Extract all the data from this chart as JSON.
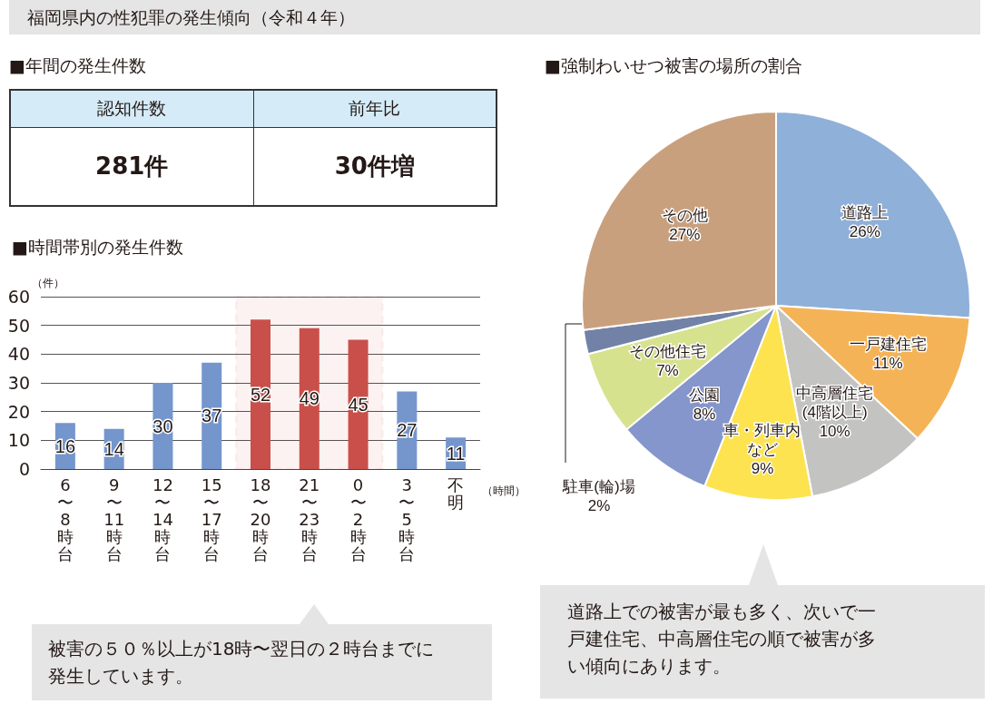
{
  "chart_data": [
    {
      "type": "other",
      "title": "福岡県内の性犯罪の発生傾向（令和４年）",
      "subtitle": "■年間の発生件数",
      "annotations": [
        "認知件数",
        "前年比",
        "281件",
        "30件増"
      ]
    },
    {
      "type": "bar",
      "title": "■時間帯別の発生件数",
      "ylabel": "（件）",
      "xlabel": "（時間）",
      "categories": [
        "6〜8時台",
        "9〜11時台",
        "12〜14時台",
        "15〜17時台",
        "18〜20時台",
        "21〜23時台",
        "0〜2時台",
        "3〜5時台",
        "不明"
      ],
      "values": [
        16,
        14,
        30,
        37,
        52,
        49,
        45,
        27,
        11
      ],
      "colors": [
        "#7496cc",
        "#7496cc",
        "#7496cc",
        "#7496cc",
        "#c9504a",
        "#c9504a",
        "#c9504a",
        "#7496cc",
        "#7496cc"
      ],
      "ylim": [
        0,
        60
      ],
      "yticks": [
        0,
        10,
        20,
        30,
        40,
        50,
        60
      ],
      "grid": "y",
      "data_labels": true,
      "bands": [
        {
          "axis": "x",
          "from": "18〜20時台",
          "to": "0〜2時台",
          "color": "#e02828"
        }
      ],
      "annotations": [
        "被害の５０％以上が18時〜翌日の２時台までに発生しています。"
      ]
    },
    {
      "type": "pie",
      "title": "■強制わいせつ被害の場所の割合",
      "categories": [
        "道路上",
        "一戸建住宅",
        "中高層住宅(4階以上)",
        "車・列車内など",
        "公園",
        "その他住宅",
        "駐車(輪)場",
        "その他"
      ],
      "values": [
        26,
        11,
        10,
        9,
        8,
        7,
        2,
        27
      ],
      "colors": [
        "#8fb0d8",
        "#f5b357",
        "#c3c4c2",
        "#fde350",
        "#8496cb",
        "#d6e28d",
        "#7182a6",
        "#c9a07e"
      ],
      "value_labels": [
        "26%",
        "11%",
        "10%",
        "9%",
        "8%",
        "7%",
        "2%",
        "27%"
      ],
      "annotations": [
        "道路上での被害が最も多く、次いで一戸建住宅、中高層住宅の順で被害が多い傾向にあります。"
      ]
    }
  ]
}
